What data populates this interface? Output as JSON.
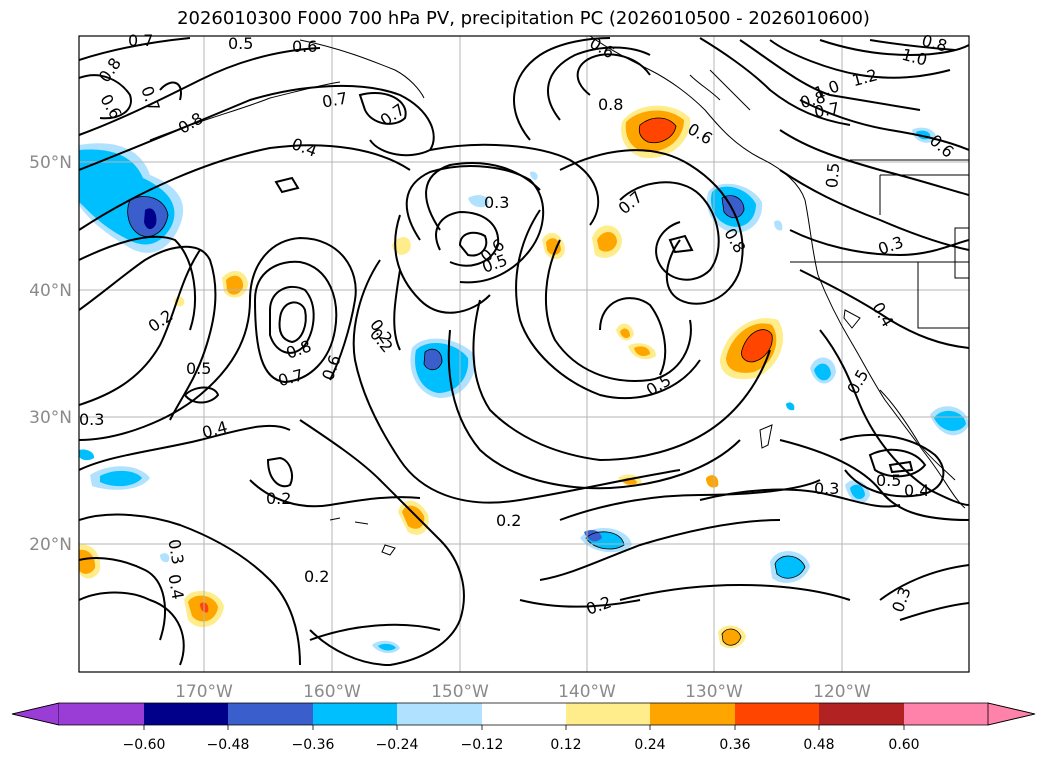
{
  "title": "2026010300 F000 700 hPa PV, precipitation PC (2026010500 - 2026010600)",
  "lat_labels": [
    "50°N",
    "40°N",
    "30°N",
    "20°N"
  ],
  "lon_labels": [
    "170°W",
    "160°W",
    "150°W",
    "140°W",
    "130°W",
    "120°W"
  ],
  "contour_labels": [
    "0.7",
    "0.5",
    "0.6",
    "0.8",
    "0.6",
    "0.7",
    "0.8",
    "0.4",
    "0.7",
    "0.3",
    "0.6",
    "0.5",
    "0.2",
    "0.5",
    "0.8",
    "0.6",
    "0.7",
    "0.2",
    "0.4",
    "0.3",
    "0.2",
    "0.2",
    "0.2",
    "0.4",
    "0.2",
    "0.3",
    "0.7",
    "0.8",
    "0.6",
    "0.8",
    "0.6",
    "1.0",
    "1.2",
    "1.0",
    "0.8",
    "0.7",
    "0.5",
    "0.6",
    "0.3",
    "0.4",
    "0.5",
    "0.3",
    "0.5",
    "0.4",
    "0.3",
    "0.5",
    "0.2",
    "0.7",
    "0.8"
  ],
  "colorbar": {
    "ticks": [
      "−0.60",
      "−0.48",
      "−0.36",
      "−0.24",
      "−0.12",
      "0.12",
      "0.24",
      "0.36",
      "0.48",
      "0.60"
    ],
    "colors": [
      "#9a3dd6",
      "#00008b",
      "#3a5fcd",
      "#00bfff",
      "#b0e2ff",
      "#ffffff",
      "#ffec8b",
      "#ffa500",
      "#ff4500",
      "#b22222",
      "#ff82ab"
    ]
  }
}
